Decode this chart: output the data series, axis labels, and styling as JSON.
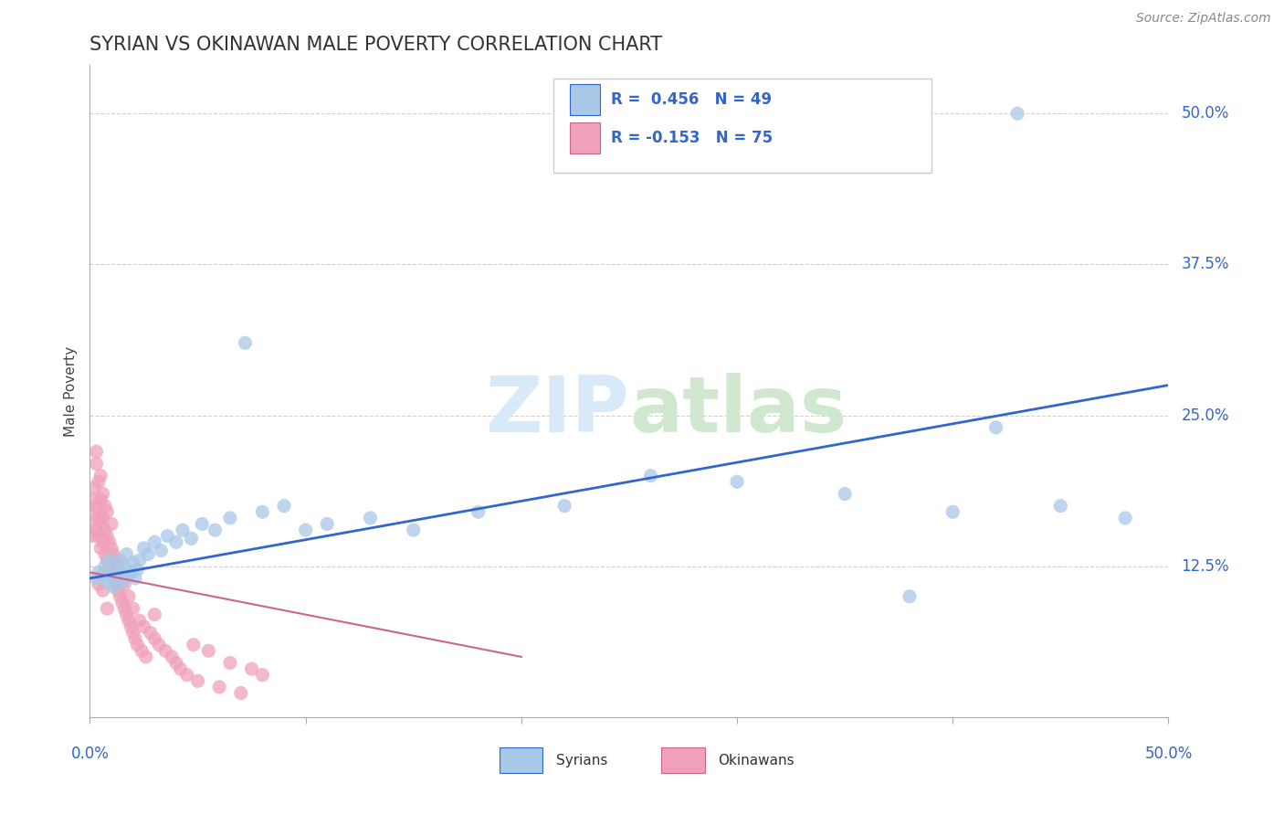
{
  "title": "SYRIAN VS OKINAWAN MALE POVERTY CORRELATION CHART",
  "source_text": "Source: ZipAtlas.com",
  "ylabel": "Male Poverty",
  "y_tick_labels": [
    "12.5%",
    "25.0%",
    "37.5%",
    "50.0%"
  ],
  "y_tick_values": [
    0.125,
    0.25,
    0.375,
    0.5
  ],
  "x_range": [
    0.0,
    0.5
  ],
  "y_range": [
    0.0,
    0.54
  ],
  "syrian_color": "#a8c8e8",
  "okinawan_color": "#f0a0b8",
  "syrian_line_color": "#3366cc",
  "okinawan_line_color": "#cc6688",
  "r_syrian": 0.456,
  "n_syrian": 49,
  "r_okinawan": -0.153,
  "n_okinawan": 75,
  "legend_syrians": "Syrians",
  "legend_okinawans": "Okinawans",
  "watermark_zip_color": "#ddeeff",
  "watermark_atlas_color": "#ddeedd",
  "syrian_x": [
    0.003,
    0.004,
    0.006,
    0.007,
    0.008,
    0.009,
    0.01,
    0.011,
    0.012,
    0.013,
    0.014,
    0.015,
    0.016,
    0.017,
    0.018,
    0.019,
    0.02,
    0.021,
    0.022,
    0.023,
    0.025,
    0.027,
    0.03,
    0.033,
    0.036,
    0.04,
    0.043,
    0.047,
    0.052,
    0.058,
    0.065,
    0.072,
    0.08,
    0.09,
    0.1,
    0.11,
    0.13,
    0.15,
    0.18,
    0.22,
    0.26,
    0.3,
    0.35,
    0.4,
    0.42,
    0.45,
    0.48,
    0.38,
    0.43
  ],
  "syrian_y": [
    0.115,
    0.12,
    0.118,
    0.125,
    0.112,
    0.13,
    0.115,
    0.108,
    0.122,
    0.118,
    0.13,
    0.112,
    0.125,
    0.135,
    0.118,
    0.12,
    0.128,
    0.115,
    0.122,
    0.13,
    0.14,
    0.135,
    0.145,
    0.138,
    0.15,
    0.145,
    0.155,
    0.148,
    0.16,
    0.155,
    0.165,
    0.31,
    0.17,
    0.175,
    0.155,
    0.16,
    0.165,
    0.155,
    0.17,
    0.175,
    0.2,
    0.195,
    0.185,
    0.17,
    0.24,
    0.175,
    0.165,
    0.1,
    0.5
  ],
  "okinawan_x": [
    0.0,
    0.001,
    0.001,
    0.002,
    0.002,
    0.003,
    0.003,
    0.003,
    0.004,
    0.004,
    0.004,
    0.005,
    0.005,
    0.005,
    0.005,
    0.006,
    0.006,
    0.006,
    0.007,
    0.007,
    0.007,
    0.008,
    0.008,
    0.008,
    0.009,
    0.009,
    0.01,
    0.01,
    0.01,
    0.011,
    0.011,
    0.012,
    0.012,
    0.013,
    0.013,
    0.014,
    0.014,
    0.015,
    0.015,
    0.016,
    0.016,
    0.017,
    0.018,
    0.018,
    0.019,
    0.02,
    0.02,
    0.021,
    0.022,
    0.023,
    0.024,
    0.025,
    0.026,
    0.028,
    0.03,
    0.032,
    0.035,
    0.038,
    0.04,
    0.042,
    0.045,
    0.048,
    0.05,
    0.055,
    0.06,
    0.065,
    0.07,
    0.075,
    0.08,
    0.003,
    0.004,
    0.006,
    0.008,
    0.01,
    0.03
  ],
  "okinawan_y": [
    0.16,
    0.18,
    0.15,
    0.17,
    0.19,
    0.155,
    0.175,
    0.21,
    0.15,
    0.165,
    0.195,
    0.14,
    0.16,
    0.18,
    0.2,
    0.145,
    0.165,
    0.185,
    0.135,
    0.155,
    0.175,
    0.13,
    0.15,
    0.17,
    0.125,
    0.145,
    0.12,
    0.14,
    0.16,
    0.115,
    0.135,
    0.11,
    0.13,
    0.105,
    0.125,
    0.1,
    0.12,
    0.095,
    0.115,
    0.09,
    0.11,
    0.085,
    0.08,
    0.1,
    0.075,
    0.07,
    0.09,
    0.065,
    0.06,
    0.08,
    0.055,
    0.075,
    0.05,
    0.07,
    0.065,
    0.06,
    0.055,
    0.05,
    0.045,
    0.04,
    0.035,
    0.06,
    0.03,
    0.055,
    0.025,
    0.045,
    0.02,
    0.04,
    0.035,
    0.22,
    0.11,
    0.105,
    0.09,
    0.115,
    0.085
  ],
  "syr_line_x0": 0.0,
  "syr_line_y0": 0.115,
  "syr_line_x1": 0.5,
  "syr_line_y1": 0.275,
  "oki_line_x0": 0.0,
  "oki_line_y0": 0.12,
  "oki_line_x1": 0.2,
  "oki_line_y1": 0.05
}
